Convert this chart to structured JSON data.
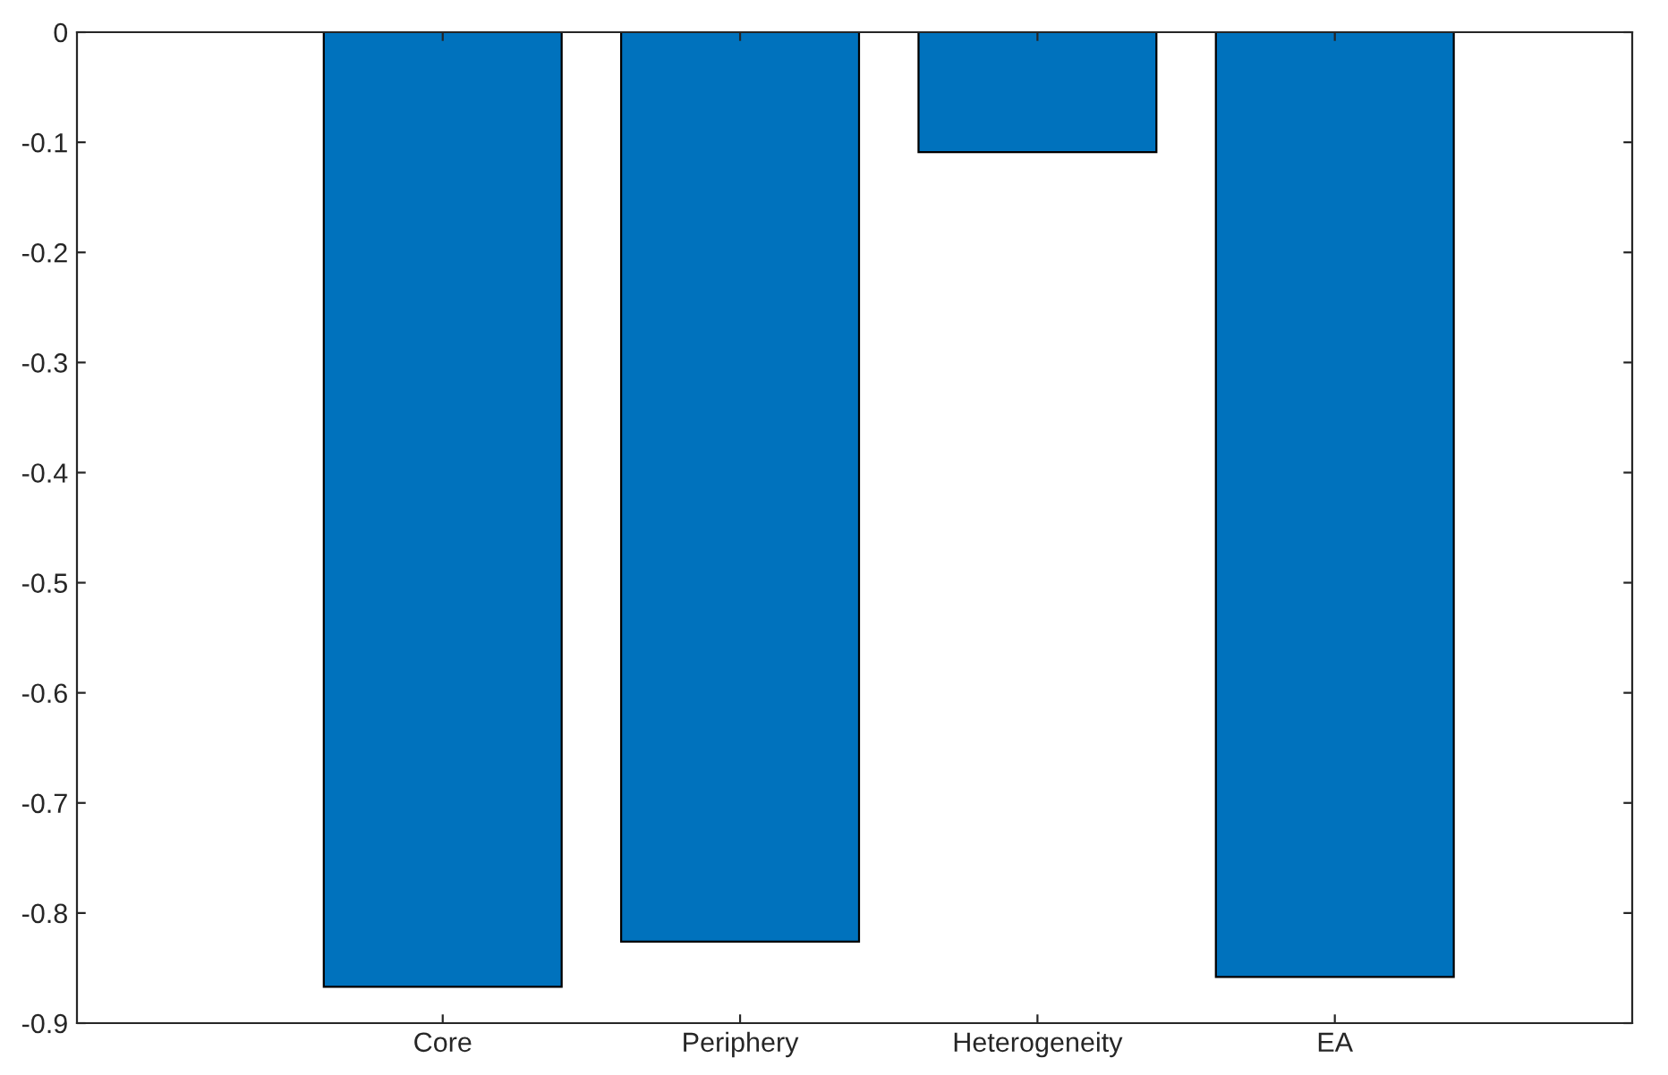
{
  "chart_data": {
    "type": "bar",
    "categories": [
      "Core",
      "Periphery",
      "Heterogeneity",
      "EA"
    ],
    "values": [
      -0.867,
      -0.826,
      -0.109,
      -0.858
    ],
    "color": "#0072bd",
    "ylim": [
      -0.9,
      0
    ],
    "yticks": [
      -0.9,
      -0.8,
      -0.7,
      -0.6,
      -0.5,
      -0.4,
      -0.3,
      -0.2,
      -0.1,
      0
    ],
    "grid": false,
    "legend": false
  }
}
